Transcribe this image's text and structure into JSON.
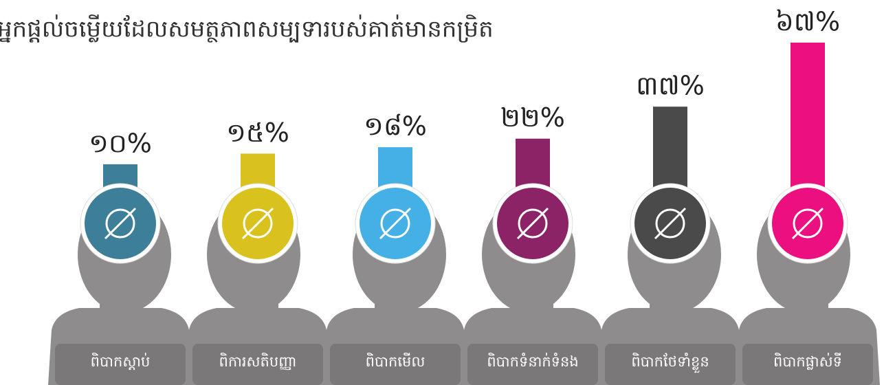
{
  "chart_data": {
    "type": "bar",
    "title": "អ្នកផ្តល់ចម្លើយដែលសមត្ថភាពសម្បទារបស់គាត់មានកម្រិត",
    "categories": [
      "ពិបាកស្តាប់",
      "ពិការសតិបញ្ញា",
      "ពិបាកមើល",
      "ពិបាកទំនាក់ទំនង",
      "ពិបាកថែទាំខ្លួន",
      "ពិបាកផ្លាស់ទី"
    ],
    "values": [
      10,
      15,
      18,
      22,
      37,
      67
    ],
    "value_labels": [
      "១០%",
      "១៥%",
      "១៨%",
      "២២%",
      "៣៧%",
      "៦៧%"
    ],
    "colors": [
      "#3d7f99",
      "#d9c21e",
      "#45b0e5",
      "#8c2366",
      "#4a4a4a",
      "#ec0f7f"
    ]
  }
}
